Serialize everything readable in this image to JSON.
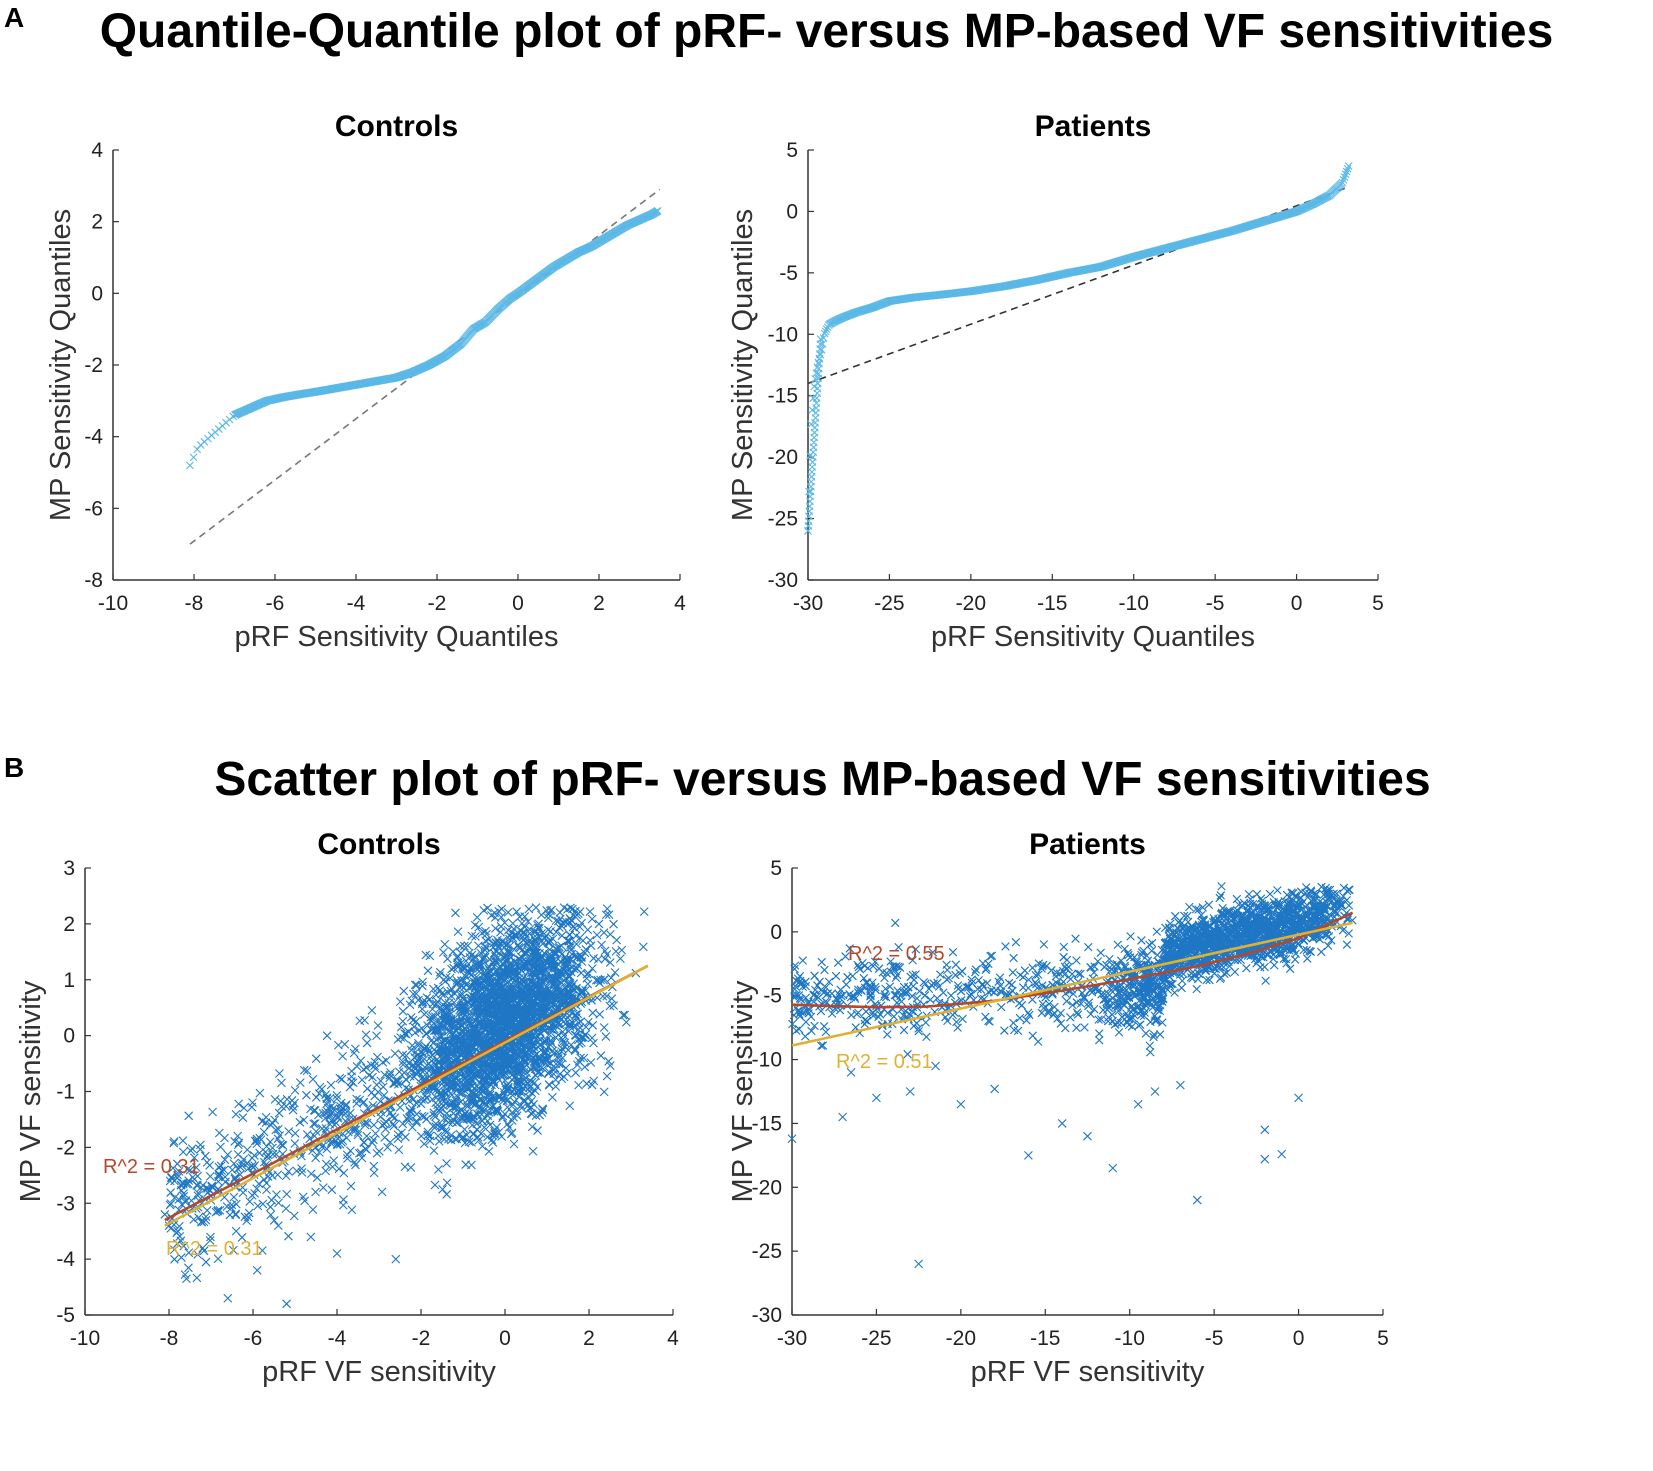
{
  "panel_a": {
    "letter": "A",
    "title": "Quantile-Quantile plot of pRF- versus MP-based VF sensitivities"
  },
  "panel_b": {
    "letter": "B",
    "title": "Scatter plot of pRF- versus MP-based VF sensitivities"
  },
  "colors": {
    "points": "#5bb8e6",
    "scatter": "#1f77c4",
    "fit_red": "#b5482a",
    "fit_yellow": "#e0b030",
    "axis": "#333333",
    "ref_line": "#888888"
  },
  "chart_data": [
    {
      "type": "scatter",
      "subtype": "qq",
      "title": "Controls",
      "xlabel": "pRF Sensitivity Quantiles",
      "ylabel": "MP Sensitivity Quantiles",
      "xlim": [
        -10,
        4
      ],
      "ylim": [
        -8,
        4
      ],
      "xticks": [
        -10,
        -8,
        -6,
        -4,
        -2,
        0,
        2,
        4
      ],
      "yticks": [
        -8,
        -6,
        -4,
        -2,
        0,
        2,
        4
      ],
      "reference_line": {
        "x": [
          -8.1,
          3.5
        ],
        "y": [
          -7.0,
          2.9
        ],
        "style": "dashed"
      },
      "curve": {
        "x": [
          -8.1,
          -7.9,
          -7.6,
          -7.3,
          -7.0,
          -6.6,
          -6.2,
          -5.8,
          -5.4,
          -5.0,
          -4.5,
          -4.0,
          -3.5,
          -3.0,
          -2.6,
          -2.2,
          -1.8,
          -1.4,
          -1.1,
          -0.8,
          -0.5,
          -0.2,
          0.0,
          0.3,
          0.6,
          0.9,
          1.2,
          1.5,
          1.8,
          2.1,
          2.4,
          2.7,
          3.0,
          3.3,
          3.45
        ],
        "y": [
          -4.8,
          -4.3,
          -4.0,
          -3.7,
          -3.4,
          -3.2,
          -3.0,
          -2.9,
          -2.82,
          -2.75,
          -2.65,
          -2.55,
          -2.45,
          -2.35,
          -2.2,
          -2.0,
          -1.75,
          -1.4,
          -1.0,
          -0.8,
          -0.45,
          -0.15,
          0.0,
          0.25,
          0.5,
          0.75,
          0.95,
          1.15,
          1.3,
          1.5,
          1.7,
          1.9,
          2.05,
          2.2,
          2.3
        ]
      }
    },
    {
      "type": "scatter",
      "subtype": "qq",
      "title": "Patients",
      "xlabel": "pRF Sensitivity Quantiles",
      "ylabel": "MP Sensitivity Quantiles",
      "xlim": [
        -30,
        5
      ],
      "ylim": [
        -30,
        5
      ],
      "xticks": [
        -30,
        -25,
        -20,
        -15,
        -10,
        -5,
        0,
        5
      ],
      "yticks": [
        -30,
        -25,
        -20,
        -15,
        -10,
        -5,
        0,
        5
      ],
      "reference_line": {
        "x": [
          -30,
          3.2
        ],
        "y": [
          -14.0,
          2.0
        ],
        "style": "dashed"
      },
      "curve": {
        "x": [
          -30,
          -29.9,
          -29.8,
          -29.6,
          -29.4,
          -29.2,
          -29.0,
          -28.7,
          -28.3,
          -27.8,
          -27.0,
          -26.0,
          -25.0,
          -23.5,
          -22.0,
          -20.0,
          -18.0,
          -16.0,
          -14.0,
          -12.0,
          -10.0,
          -8.0,
          -6.0,
          -4.0,
          -2.0,
          0.0,
          1.0,
          2.0,
          2.8,
          3.2
        ],
        "y": [
          -26,
          -21,
          -17,
          -14,
          -12.5,
          -11.5,
          -10.0,
          -9.2,
          -8.9,
          -8.6,
          -8.2,
          -7.8,
          -7.3,
          -7.0,
          -6.8,
          -6.5,
          -6.1,
          -5.6,
          -5.0,
          -4.5,
          -3.7,
          -3.0,
          -2.3,
          -1.6,
          -0.8,
          0.0,
          0.6,
          1.3,
          2.3,
          3.7
        ]
      }
    },
    {
      "type": "scatter",
      "title": "Controls",
      "xlabel": "pRF VF sensitivity",
      "ylabel": "MP VF sensitivity",
      "xlim": [
        -10,
        4
      ],
      "ylim": [
        -5,
        3
      ],
      "xticks": [
        -10,
        -8,
        -6,
        -4,
        -2,
        0,
        2,
        4
      ],
      "yticks": [
        -5,
        -4,
        -3,
        -2,
        -1,
        0,
        1,
        2,
        3
      ],
      "cloud": {
        "center": [
          0.0,
          0.0
        ],
        "slope": 0.39,
        "x_range": [
          -8.1,
          3.4
        ],
        "dense_x": [
          -2,
          2
        ],
        "spread": 0.75
      },
      "fits": [
        {
          "label": "R^2 = 0.31",
          "x": [
            -8.1,
            3.4
          ],
          "y": [
            -3.3,
            1.25
          ],
          "color": "red"
        },
        {
          "label": "R^2 = 0.31",
          "x": [
            -8.1,
            3.4
          ],
          "y": [
            -3.4,
            1.25
          ],
          "color": "yellow"
        }
      ],
      "annotations": [
        "R^2 = 0.31",
        "R^2 = 0.31"
      ]
    },
    {
      "type": "scatter",
      "title": "Patients",
      "xlabel": "pRF VF sensitivity",
      "ylabel": "MP VF sensitivity",
      "xlim": [
        -30,
        5
      ],
      "ylim": [
        -30,
        5
      ],
      "xticks": [
        -30,
        -25,
        -20,
        -15,
        -10,
        -5,
        0,
        5
      ],
      "yticks": [
        -30,
        -25,
        -20,
        -15,
        -10,
        -5,
        0,
        5
      ],
      "outliers": [
        [
          -22.5,
          -26
        ],
        [
          -6,
          -21
        ],
        [
          -16,
          -17.5
        ],
        [
          -11,
          -18.5
        ],
        [
          -2,
          -17.8
        ],
        [
          -1,
          -17.4
        ],
        [
          -2,
          -15.5
        ],
        [
          -14,
          -15
        ],
        [
          -12.5,
          -16
        ],
        [
          -30,
          -16.2
        ],
        [
          -27,
          -14.5
        ],
        [
          -25,
          -13
        ],
        [
          -23,
          -12.5
        ],
        [
          -20,
          -13.5
        ],
        [
          -18,
          -12.3
        ],
        [
          -9.5,
          -13.5
        ],
        [
          0,
          -13
        ],
        [
          -8.5,
          -12.5
        ],
        [
          -7,
          -12
        ],
        [
          -26.5,
          -11
        ],
        [
          -21.5,
          -10.5
        ]
      ],
      "fits": [
        {
          "label": "R^2 = 0.55",
          "x": [
            -30,
            -28,
            -25,
            -22,
            -18,
            -14,
            -10,
            -6,
            -3,
            0,
            3.2
          ],
          "y": [
            -5.7,
            -5.8,
            -5.9,
            -5.85,
            -5.4,
            -4.6,
            -3.7,
            -2.7,
            -1.7,
            -0.5,
            1.5
          ],
          "color": "red"
        },
        {
          "label": "R^2 = 0.51",
          "x": [
            -30,
            3.2
          ],
          "y": [
            -8.9,
            0.7
          ],
          "color": "yellow"
        }
      ],
      "annotations": [
        "R^2 = 0.55",
        "R^2 = 0.51"
      ]
    }
  ]
}
